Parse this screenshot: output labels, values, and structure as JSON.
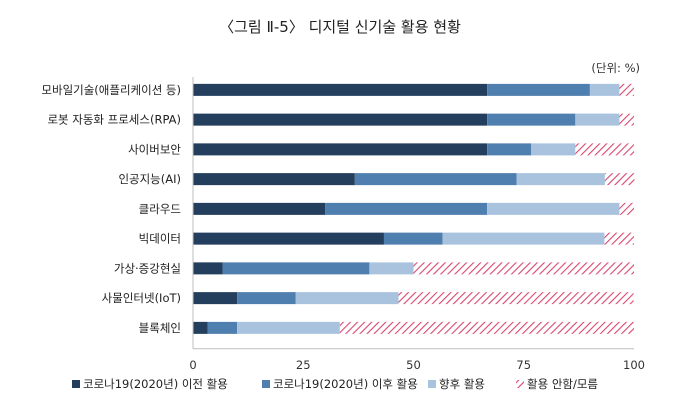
{
  "chart_data": {
    "type": "bar",
    "orientation": "horizontal",
    "stacked": true,
    "title": "〈그림 Ⅱ-5〉 디지털 신기술 활용 현황",
    "unit": "(단위: %)",
    "xlim": [
      0,
      100
    ],
    "xticks": [
      "0",
      "25",
      "50",
      "75",
      "100"
    ],
    "categories": [
      "모바일기술(애플리케이션 등)",
      "로봇 자동화 프로세스(RPA)",
      "사이버보안",
      "인공지능(AI)",
      "클라우드",
      "빅데이터",
      "가상·증강현실",
      "사물인터넷(IoT)",
      "블록체인"
    ],
    "series": [
      {
        "name": "코로나19(2020년) 이전 활용",
        "color": "#243f5e",
        "pattern": "solid",
        "values": [
          66.7,
          66.7,
          66.7,
          36.7,
          30.0,
          43.3,
          6.7,
          10.0,
          3.3
        ]
      },
      {
        "name": "코로나19(2020년) 이후 활용",
        "color": "#4f7fae",
        "pattern": "solid",
        "values": [
          23.3,
          20.0,
          10.0,
          36.7,
          36.7,
          13.3,
          33.3,
          13.3,
          6.7
        ]
      },
      {
        "name": "향후 활용",
        "color": "#a9c3de",
        "pattern": "solid",
        "values": [
          6.7,
          10.0,
          10.0,
          20.0,
          30.0,
          36.7,
          10.0,
          23.3,
          23.3
        ]
      },
      {
        "name": "활용 안함/모름",
        "color": "#d9466f",
        "pattern": "hatch",
        "values": [
          3.3,
          3.3,
          13.3,
          6.7,
          3.3,
          6.7,
          50.0,
          53.3,
          66.7
        ]
      }
    ],
    "legend_position": "bottom",
    "grid": false
  }
}
